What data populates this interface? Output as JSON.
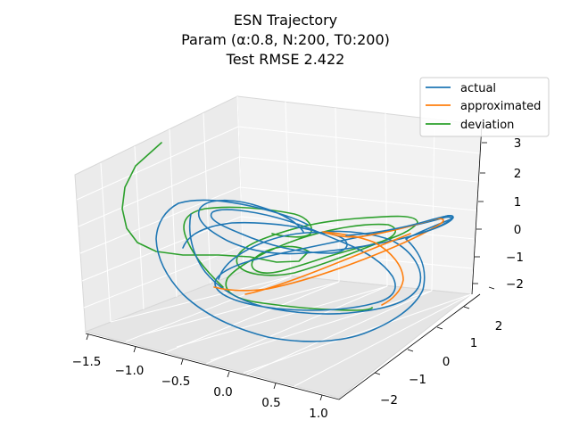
{
  "chart_data": {
    "type": "line",
    "projection": "3d",
    "title": [
      "ESN Trajectory",
      "Param (α:0.8, N:200, T0:200)",
      "Test RMSE 2.422"
    ],
    "axes": {
      "x": {
        "ticks": [
          "−1.5",
          "−1.0",
          "−0.5",
          "0.0",
          "0.5",
          "1.0"
        ],
        "range": [
          -1.5,
          1.0
        ]
      },
      "y": {
        "ticks": [
          "−2",
          "−1",
          "0",
          "1",
          "2"
        ],
        "range": [
          -2,
          2
        ]
      },
      "z": {
        "ticks": [
          "−2",
          "−1",
          "0",
          "1",
          "2",
          "3"
        ],
        "range": [
          -2,
          3
        ]
      }
    },
    "grid": true,
    "legend": {
      "position": "top-right",
      "entries": [
        "actual",
        "approximated",
        "deviation"
      ]
    },
    "colors": {
      "actual": "#1f77b4",
      "approximated": "#ff7f0e",
      "deviation": "#2ca02c"
    }
  }
}
